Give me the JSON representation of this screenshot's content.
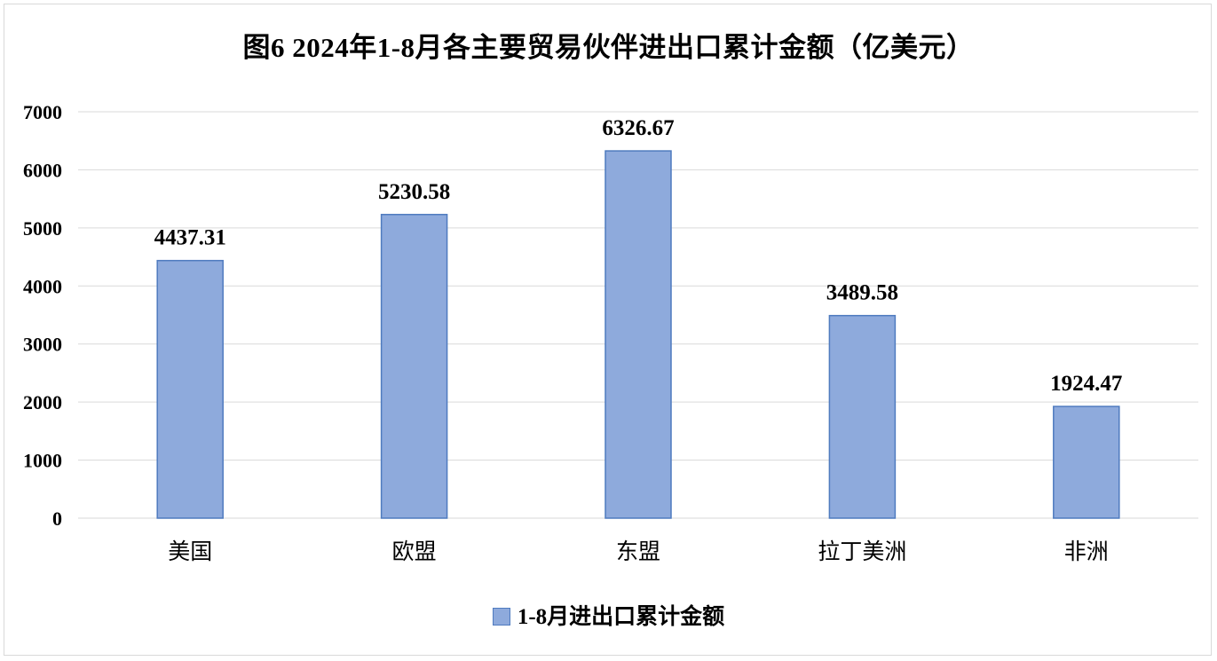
{
  "chart_data": {
    "type": "bar",
    "title": "图6 2024年1-8月各主要贸易伙伴进出口累计金额（亿美元）",
    "categories": [
      "美国",
      "欧盟",
      "东盟",
      "拉丁美洲",
      "非洲"
    ],
    "series": [
      {
        "name": "1-8月进出口累计金额",
        "values": [
          4437.31,
          5230.58,
          6326.67,
          3489.58,
          1924.47
        ]
      }
    ],
    "data_labels": [
      "4437.31",
      "5230.58",
      "6326.67",
      "3489.58",
      "1924.47"
    ],
    "xlabel": "",
    "ylabel": "",
    "ylim": [
      0,
      7000
    ],
    "yticks": [
      0,
      1000,
      2000,
      3000,
      4000,
      5000,
      6000,
      7000
    ],
    "grid": true,
    "legend_position": "bottom",
    "colors": {
      "bar_fill": "#8eaadc",
      "bar_stroke": "#4f7bbf",
      "grid": "#d9d9d9"
    }
  }
}
